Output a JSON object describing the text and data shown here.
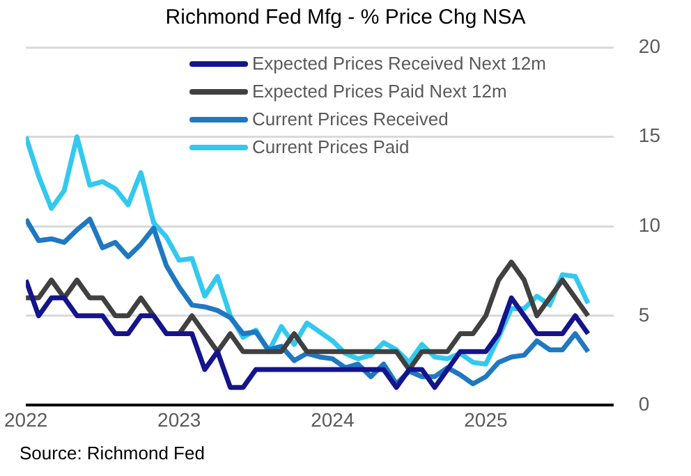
{
  "chart_data": {
    "type": "line",
    "title": "Richmond Fed Mfg - % Price Chg NSA",
    "x": [
      "2022-01",
      "2022-02",
      "2022-03",
      "2022-04",
      "2022-05",
      "2022-06",
      "2022-07",
      "2022-08",
      "2022-09",
      "2022-10",
      "2022-11",
      "2022-12",
      "2023-01",
      "2023-02",
      "2023-03",
      "2023-04",
      "2023-05",
      "2023-06",
      "2023-07",
      "2023-08",
      "2023-09",
      "2023-10",
      "2023-11",
      "2023-12",
      "2024-01",
      "2024-02",
      "2024-03",
      "2024-04",
      "2024-05",
      "2024-06",
      "2024-07",
      "2024-08",
      "2024-09",
      "2024-10",
      "2024-11",
      "2024-12",
      "2025-01",
      "2025-02",
      "2025-03",
      "2025-04",
      "2025-05",
      "2025-06",
      "2025-07",
      "2025-08",
      "2025-09"
    ],
    "series": [
      {
        "name": "Expected Prices Received Next 12m",
        "color": "#14148c",
        "values": [
          7,
          5,
          6,
          6,
          5,
          5,
          5,
          4,
          4,
          5,
          5,
          4,
          4,
          4,
          2,
          3,
          1,
          1,
          2,
          2,
          2,
          2,
          2,
          2,
          2,
          2,
          2,
          2,
          2,
          1,
          2,
          2,
          1,
          2,
          3,
          3,
          3,
          4,
          6,
          5,
          4,
          4,
          4,
          5,
          4
        ]
      },
      {
        "name": "Expected Prices Paid Next 12m",
        "color": "#404040",
        "values": [
          6,
          6,
          7,
          6,
          7,
          6,
          6,
          5,
          5,
          6,
          5,
          4,
          4,
          5,
          4,
          3,
          4,
          3,
          3,
          3,
          3,
          4,
          3,
          3,
          3,
          3,
          3,
          3,
          3,
          3,
          2,
          3,
          3,
          3,
          4,
          4,
          5,
          7,
          8,
          7,
          5,
          6,
          7,
          6,
          5
        ]
      },
      {
        "name": "Current Prices Received",
        "color": "#1f78c1",
        "values": [
          10.4,
          9.2,
          9.3,
          9.1,
          9.8,
          10.4,
          8.8,
          9.1,
          8.3,
          9,
          9.9,
          7.8,
          6.6,
          5.6,
          5.5,
          5.3,
          4.9,
          4,
          4.1,
          3.1,
          3.3,
          2.5,
          2.9,
          2.7,
          2.6,
          2.1,
          2.3,
          1.6,
          2.3,
          1.2,
          1.9,
          1.6,
          1.6,
          2.1,
          1.7,
          1.2,
          1.6,
          2.4,
          2.7,
          2.8,
          3.6,
          3.1,
          3.1,
          4,
          3
        ]
      },
      {
        "name": "Current Prices Paid",
        "color": "#33c9ee",
        "values": [
          15,
          12.8,
          11,
          12,
          15,
          12.3,
          12.5,
          12.1,
          11.2,
          13,
          10.2,
          9.4,
          8.1,
          8.2,
          6.1,
          7.2,
          5,
          3.8,
          4.2,
          3,
          4.4,
          3.4,
          4.6,
          4.1,
          3.6,
          2.9,
          2.6,
          2.8,
          3.5,
          3.1,
          2.4,
          3.4,
          2.7,
          2.6,
          2.9,
          2.4,
          2.3,
          3.8,
          5.4,
          5.4,
          6.1,
          5.6,
          7.3,
          7.2,
          5.7
        ]
      }
    ],
    "xlim": [
      "2022-01",
      "2025-11"
    ],
    "xticks": [
      {
        "value": "2022-01",
        "label": "2022"
      },
      {
        "value": "2023-01",
        "label": "2023"
      },
      {
        "value": "2024-01",
        "label": "2024"
      },
      {
        "value": "2025-01",
        "label": "2025"
      }
    ],
    "ylim": [
      0,
      20
    ],
    "yticks": [
      0,
      5,
      10,
      15,
      20
    ],
    "grid": "y",
    "legend": "top",
    "line_style": "solid",
    "marker": "none",
    "annotations": [
      "Source: Richmond Fed"
    ]
  }
}
